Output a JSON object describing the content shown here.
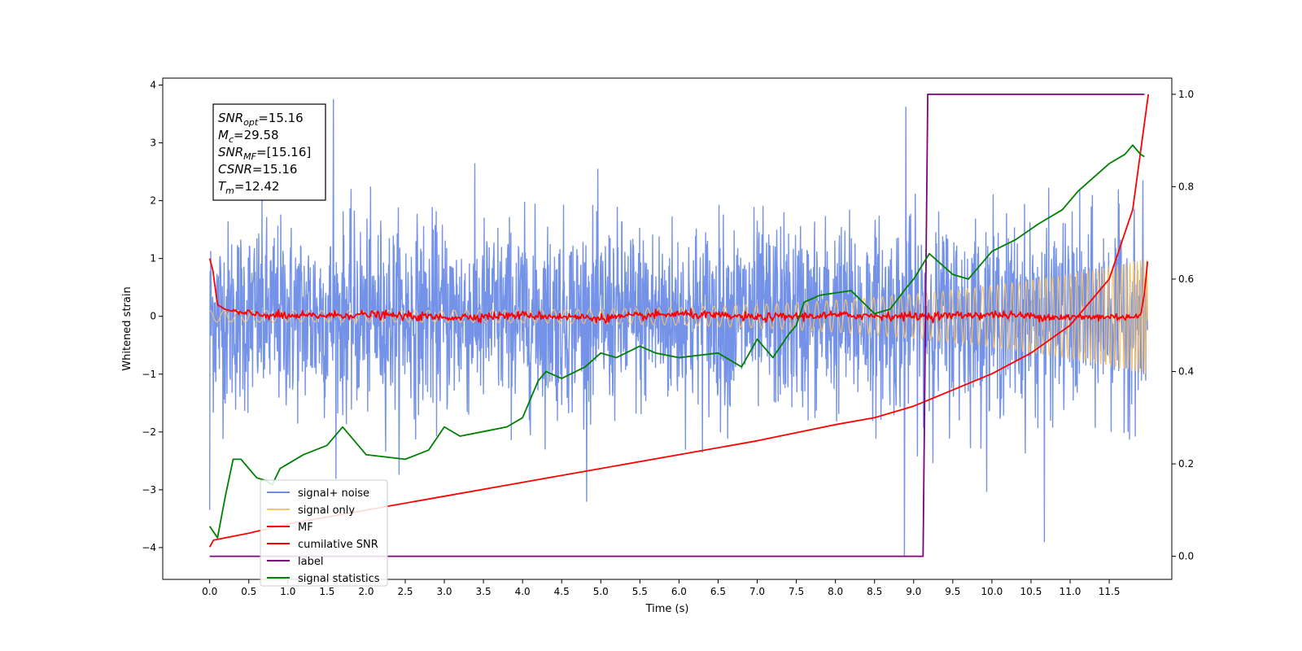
{
  "chart_data": {
    "type": "line",
    "xlabel": "Time (s)",
    "ylabel": "Whitened strain",
    "xlim": [
      -0.6,
      12.3
    ],
    "ylim": [
      -4.55,
      4.12
    ],
    "y2lim": [
      -0.05,
      1.035
    ],
    "xticks": [
      0.0,
      0.5,
      1.0,
      1.5,
      2.0,
      2.5,
      3.0,
      3.5,
      4.0,
      4.5,
      5.0,
      5.5,
      6.0,
      6.5,
      7.0,
      7.5,
      8.0,
      8.5,
      9.0,
      9.5,
      10.0,
      10.5,
      11.0,
      11.5
    ],
    "xtick_labels": [
      "0.0",
      "0.5",
      "1.0",
      "1.5",
      "2.0",
      "2.5",
      "3.0",
      "3.5",
      "4.0",
      "4.5",
      "5.0",
      "5.5",
      "6.0",
      "6.5",
      "7.0",
      "7.5",
      "8.0",
      "8.5",
      "9.0",
      "9.5",
      "10.0",
      "10.5",
      "11.0",
      "11.5"
    ],
    "yticks": [
      -4,
      -3,
      -2,
      -1,
      0,
      1,
      2,
      3,
      4
    ],
    "ytick_labels": [
      "−4",
      "−3",
      "−2",
      "−1",
      "0",
      "1",
      "2",
      "3",
      "4"
    ],
    "y2ticks": [
      0.0,
      0.2,
      0.4,
      0.6,
      0.8,
      1.0
    ],
    "y2tick_labels": [
      "0.0",
      "0.2",
      "0.4",
      "0.6",
      "0.8",
      "1.0"
    ],
    "legend_placement": "lower-left",
    "annotation": {
      "lines": [
        {
          "sym": "SNR",
          "sub": "opt",
          "value": "=15.16"
        },
        {
          "sym": "M",
          "sub": "c",
          "value": "=29.58"
        },
        {
          "sym": "SNR",
          "sub": "MF",
          "value": "=[15.16]"
        },
        {
          "sym": "CSNR",
          "sub": "",
          "value": "=15.16"
        },
        {
          "sym": "T",
          "sub": "m",
          "value": "=12.42"
        }
      ]
    },
    "series": [
      {
        "name": "signal+ noise",
        "color": "#6d8ce6",
        "axis": "left",
        "kind": "noise",
        "x_range": [
          0.0,
          11.99
        ],
        "spread": 1.3,
        "extremes": [
          [
            1.58,
            3.75
          ],
          [
            8.9,
            3.62
          ],
          [
            8.88,
            -4.15
          ],
          [
            10.67,
            -3.9
          ],
          [
            0.0,
            -3.35
          ]
        ]
      },
      {
        "name": "signal only",
        "color": "#f5c26b",
        "axis": "left",
        "kind": "chirp",
        "x_range": [
          0.0,
          11.99
        ],
        "amplitude_start": 0.1,
        "amplitude_end": 1.0
      },
      {
        "name": "MF",
        "color": "#ff0000",
        "axis": "left",
        "x": [
          0.0,
          0.04,
          0.1,
          0.2,
          0.4,
          1.0,
          2.0,
          3.0,
          4.0,
          5.0,
          6.0,
          7.0,
          8.0,
          9.0,
          10.0,
          11.0,
          11.9,
          11.95,
          11.99
        ],
        "y": [
          1.0,
          0.8,
          0.2,
          0.12,
          0.05,
          0.0,
          0.03,
          -0.02,
          0.02,
          -0.03,
          0.04,
          -0.02,
          0.02,
          0.0,
          0.03,
          -0.02,
          0.0,
          0.4,
          0.95
        ]
      },
      {
        "name": "cumilative SNR",
        "color": "#ff0000",
        "axis": "right",
        "x": [
          0.0,
          0.05,
          0.5,
          1.0,
          2.0,
          3.0,
          4.0,
          5.0,
          6.0,
          7.0,
          8.0,
          8.5,
          9.0,
          9.5,
          10.0,
          10.5,
          11.0,
          11.5,
          11.8,
          12.0
        ],
        "y": [
          0.02,
          0.035,
          0.05,
          0.07,
          0.1,
          0.13,
          0.16,
          0.19,
          0.22,
          0.25,
          0.285,
          0.3,
          0.325,
          0.36,
          0.395,
          0.44,
          0.5,
          0.6,
          0.75,
          1.0
        ]
      },
      {
        "name": "label",
        "color": "#800080",
        "axis": "right",
        "x": [
          0.0,
          9.12,
          9.18,
          11.95
        ],
        "y": [
          0.0,
          0.0,
          1.0,
          1.0
        ]
      },
      {
        "name": "signal statistics",
        "color": "#008000",
        "axis": "right",
        "x": [
          0.0,
          0.1,
          0.2,
          0.3,
          0.4,
          0.5,
          0.6,
          0.7,
          0.8,
          0.9,
          1.0,
          1.2,
          1.5,
          1.7,
          2.0,
          2.5,
          2.8,
          3.0,
          3.2,
          3.5,
          3.8,
          4.0,
          4.2,
          4.3,
          4.5,
          4.8,
          5.0,
          5.2,
          5.5,
          5.7,
          6.0,
          6.5,
          6.8,
          7.0,
          7.2,
          7.4,
          7.5,
          7.6,
          7.8,
          8.0,
          8.2,
          8.5,
          8.7,
          8.9,
          9.0,
          9.2,
          9.5,
          9.7,
          10.0,
          10.3,
          10.6,
          10.9,
          11.1,
          11.3,
          11.5,
          11.7,
          11.8,
          11.9,
          11.95
        ],
        "y": [
          0.065,
          0.04,
          0.13,
          0.21,
          0.21,
          0.19,
          0.17,
          0.165,
          0.155,
          0.19,
          0.2,
          0.22,
          0.24,
          0.28,
          0.22,
          0.21,
          0.23,
          0.28,
          0.26,
          0.27,
          0.28,
          0.3,
          0.38,
          0.4,
          0.385,
          0.41,
          0.44,
          0.43,
          0.455,
          0.44,
          0.43,
          0.44,
          0.41,
          0.47,
          0.43,
          0.48,
          0.5,
          0.55,
          0.565,
          0.57,
          0.575,
          0.525,
          0.535,
          0.58,
          0.6,
          0.655,
          0.61,
          0.6,
          0.66,
          0.685,
          0.72,
          0.75,
          0.79,
          0.82,
          0.85,
          0.87,
          0.89,
          0.87,
          0.865
        ]
      }
    ]
  }
}
